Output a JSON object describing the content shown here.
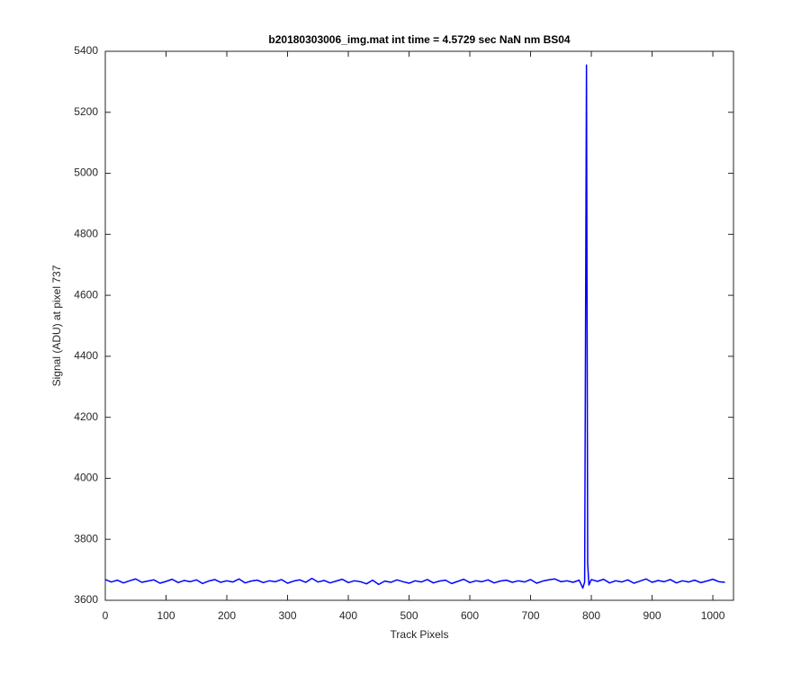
{
  "chart_data": {
    "type": "line",
    "title": "b20180303006_img.mat int time = 4.5729 sec  NaN nm BS04",
    "xlabel": "Track Pixels",
    "ylabel": "Signal (ADU) at pixel 737",
    "x": [
      0,
      10,
      20,
      30,
      40,
      50,
      60,
      70,
      80,
      90,
      100,
      110,
      120,
      130,
      140,
      150,
      160,
      170,
      180,
      190,
      200,
      210,
      220,
      230,
      240,
      250,
      260,
      270,
      280,
      290,
      300,
      310,
      320,
      330,
      340,
      350,
      360,
      370,
      380,
      390,
      400,
      410,
      420,
      430,
      440,
      450,
      460,
      470,
      480,
      490,
      500,
      510,
      520,
      530,
      540,
      550,
      560,
      570,
      580,
      590,
      600,
      610,
      620,
      630,
      640,
      650,
      660,
      670,
      680,
      690,
      700,
      710,
      720,
      730,
      740,
      750,
      760,
      770,
      780,
      786,
      789,
      792,
      794,
      796,
      800,
      810,
      820,
      830,
      840,
      850,
      860,
      870,
      880,
      890,
      900,
      910,
      920,
      930,
      940,
      950,
      960,
      970,
      980,
      990,
      1000,
      1010,
      1020
    ],
    "series": [
      {
        "name": "signal",
        "color": "#0000ff",
        "values": [
          3668,
          3660,
          3666,
          3657,
          3664,
          3670,
          3659,
          3663,
          3667,
          3656,
          3662,
          3669,
          3658,
          3665,
          3661,
          3667,
          3655,
          3663,
          3668,
          3659,
          3664,
          3660,
          3670,
          3657,
          3663,
          3666,
          3658,
          3664,
          3661,
          3668,
          3656,
          3663,
          3667,
          3659,
          3672,
          3660,
          3665,
          3657,
          3663,
          3669,
          3658,
          3664,
          3661,
          3654,
          3666,
          3652,
          3663,
          3659,
          3667,
          3661,
          3656,
          3664,
          3660,
          3668,
          3657,
          3663,
          3666,
          3655,
          3662,
          3669,
          3658,
          3664,
          3661,
          3667,
          3657,
          3663,
          3666,
          3659,
          3664,
          3660,
          3668,
          3656,
          3663,
          3667,
          3670,
          3661,
          3664,
          3659,
          3666,
          3640,
          3660,
          5355,
          3720,
          3650,
          3668,
          3662,
          3669,
          3657,
          3664,
          3660,
          3667,
          3656,
          3663,
          3670,
          3659,
          3665,
          3661,
          3668,
          3657,
          3664,
          3660,
          3666,
          3658,
          3663,
          3669,
          3661,
          3659
        ]
      }
    ],
    "xlim": [
      0,
      1034
    ],
    "ylim": [
      3600,
      5400
    ],
    "xticks": [
      0,
      100,
      200,
      300,
      400,
      500,
      600,
      700,
      800,
      900,
      1000
    ],
    "yticks": [
      3600,
      3800,
      4000,
      4200,
      4400,
      4600,
      4800,
      5000,
      5200,
      5400
    ]
  }
}
